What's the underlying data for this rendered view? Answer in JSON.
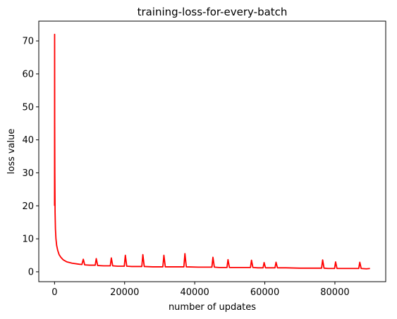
{
  "chart_data": {
    "type": "line",
    "title": "training-loss-for-every-batch",
    "xlabel": "number of updates",
    "ylabel": "loss value",
    "xlim": [
      -4500,
      94500
    ],
    "ylim": [
      -3,
      76
    ],
    "xticks": [
      0,
      20000,
      40000,
      60000,
      80000
    ],
    "yticks": [
      0,
      10,
      20,
      30,
      40,
      50,
      60,
      70
    ],
    "grid": false,
    "legend": "none",
    "series": [
      {
        "color": "#ff0000",
        "x": [
          0,
          20,
          40,
          80,
          150,
          250,
          400,
          600,
          900,
          1300,
          1800,
          2500,
          3500,
          5000,
          7000,
          7800,
          8200,
          8600,
          10000,
          11600,
          11900,
          12300,
          14000,
          15900,
          16200,
          16600,
          18000,
          19900,
          20200,
          20600,
          22000,
          24900,
          25200,
          25600,
          28000,
          30900,
          31200,
          31600,
          34000,
          36900,
          37200,
          37600,
          41000,
          44900,
          45200,
          45600,
          47000,
          49200,
          49500,
          49900,
          52000,
          55900,
          56200,
          56600,
          58000,
          59500,
          59800,
          60200,
          61000,
          62900,
          63200,
          63600,
          66000,
          70000,
          74000,
          76200,
          76500,
          76900,
          78000,
          79900,
          80200,
          80600,
          83000,
          86800,
          87100,
          87500,
          89000,
          90000
        ],
        "y": [
          20,
          72,
          45,
          30,
          18,
          13,
          10,
          8,
          6.5,
          5.2,
          4.4,
          3.6,
          3.0,
          2.6,
          2.3,
          2.2,
          3.8,
          2.1,
          2.0,
          2.0,
          4.0,
          1.9,
          1.8,
          1.8,
          4.2,
          1.8,
          1.7,
          1.7,
          5.0,
          1.7,
          1.6,
          1.6,
          5.2,
          1.6,
          1.5,
          1.5,
          5.0,
          1.5,
          1.5,
          1.5,
          5.5,
          1.5,
          1.4,
          1.4,
          4.4,
          1.4,
          1.3,
          1.3,
          3.7,
          1.3,
          1.3,
          1.3,
          3.5,
          1.3,
          1.2,
          1.2,
          2.8,
          1.2,
          1.2,
          1.2,
          2.9,
          1.2,
          1.2,
          1.1,
          1.1,
          1.1,
          3.6,
          1.1,
          1.0,
          1.0,
          3.0,
          1.0,
          1.0,
          1.0,
          2.9,
          1.0,
          0.9,
          1.0
        ]
      }
    ]
  }
}
